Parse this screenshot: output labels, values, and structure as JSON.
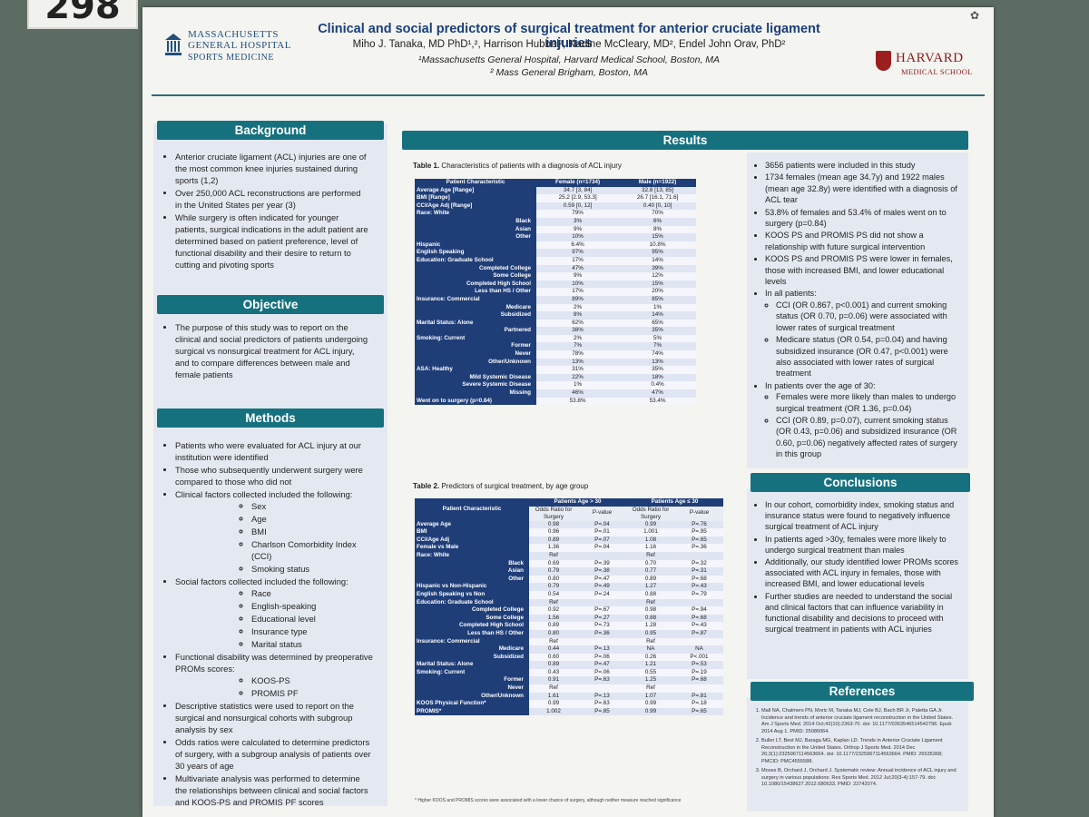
{
  "board_tag": "298",
  "header": {
    "title": "Clinical and social predictors of surgical treatment for anterior cruciate ligament injuries",
    "authors": "Miho J. Tanaka, MD PhD¹,², Harrison Hubbel², Nadine McCleary, MD², Endel John Orav, PhD²",
    "affiliation1": "¹Massachusetts General Hospital, Harvard Medical School, Boston, MA",
    "affiliation2": "² Mass General Brigham, Boston, MA",
    "logo_left_name": "MASSACHUSETTS GENERAL HOSPITAL",
    "logo_left_sub": "SPORTS MEDICINE",
    "logo_right_name": "HARVARD",
    "logo_right_sub": "MEDICAL SCHOOL"
  },
  "background": {
    "heading": "Background",
    "items": [
      "Anterior cruciate ligament (ACL) injuries are one of the most common knee injuries sustained during sports (1,2)",
      "Over 250,000 ACL reconstructions are performed in the United States per year (3)",
      "While surgery is often indicated for younger patients, surgical indications in the adult patient are determined based on patient preference, level of functional disability and their desire to return to cutting and pivoting sports"
    ]
  },
  "objective": {
    "heading": "Objective",
    "items": [
      "The purpose of this study was to report on the clinical and social predictors of patients undergoing surgical vs nonsurgical treatment for ACL injury, and to compare differences between male and female patients"
    ]
  },
  "methods": {
    "heading": "Methods",
    "item1": "Patients who were evaluated for ACL injury at our institution were identified",
    "item2": "Those who subsequently underwent surgery were compared to those who did not",
    "item3": "Clinical factors collected included the following:",
    "clinical": [
      "Sex",
      "Age",
      "BMI",
      "Charlson Comorbidity Index (CCI)",
      "Smoking status"
    ],
    "item4": "Social factors collected included the following:",
    "social": [
      "Race",
      "English-speaking",
      "Educational level",
      "Insurance type",
      "Marital status"
    ],
    "item5": "Functional disability was determined by preoperative PROMs scores:",
    "proms": [
      "KOOS-PS",
      "PROMIS PF"
    ],
    "item6": "Descriptive statistics were used to report on the surgical and nonsurgical cohorts with subgroup analysis by sex",
    "item7": "Odds ratios were calculated to determine predictors of surgery, with a subgroup analysis of patients over 30 years of age",
    "item8": "Multivariate analysis was performed to determine the relationships between clinical and social factors and KOOS-PS and PROMIS PF scores"
  },
  "results": {
    "heading": "Results",
    "table1": {
      "caption_bold": "Table 1.",
      "caption": " Characteristics of patients with a diagnosis of ACL injury",
      "headers": [
        "Patient Characteristic",
        "Female (n=1734)",
        "Male (n=1922)"
      ],
      "rows": [
        [
          "Average Age [Range]",
          "34.7 [3, 84]",
          "32.8 [13, 85]",
          false
        ],
        [
          "BMI [Range]",
          "25.2 [2.9, 53.3]",
          "26.7 [16.1, 71.6]",
          false
        ],
        [
          "CCI/Age Adj [Range]",
          "0.59 [0, 12]",
          "0.40 [0, 10]",
          false
        ],
        [
          "Race: White",
          "79%",
          "70%",
          false
        ],
        [
          "Black",
          "3%",
          "6%",
          true
        ],
        [
          "Asian",
          "9%",
          "8%",
          true
        ],
        [
          "Other",
          "10%",
          "15%",
          true
        ],
        [
          "Hispanic",
          "6.4%",
          "10.8%",
          false
        ],
        [
          "English Speaking",
          "97%",
          "95%",
          false
        ],
        [
          "Education: Graduate School",
          "17%",
          "14%",
          false
        ],
        [
          "Completed College",
          "47%",
          "39%",
          true
        ],
        [
          "Some College",
          "9%",
          "12%",
          true
        ],
        [
          "Completed High School",
          "10%",
          "15%",
          true
        ],
        [
          "Less than HS / Other",
          "17%",
          "20%",
          true
        ],
        [
          "Insurance: Commercial",
          "89%",
          "85%",
          false
        ],
        [
          "Medicare",
          "2%",
          "1%",
          true
        ],
        [
          "Subsidized",
          "8%",
          "14%",
          true
        ],
        [
          "Marital Status: Alone",
          "62%",
          "65%",
          false
        ],
        [
          "Partnered",
          "38%",
          "35%",
          true
        ],
        [
          "Smoking: Current",
          "2%",
          "5%",
          false
        ],
        [
          "Former",
          "7%",
          "7%",
          true
        ],
        [
          "Never",
          "78%",
          "74%",
          true
        ],
        [
          "Other/Unknown",
          "13%",
          "13%",
          true
        ],
        [
          "ASA: Healthy",
          "31%",
          "35%",
          false
        ],
        [
          "Mild Systemic Disease",
          "22%",
          "18%",
          true
        ],
        [
          "Severe Systemic Disease",
          "1%",
          "0.4%",
          true
        ],
        [
          "Missing",
          "46%",
          "47%",
          true
        ],
        [
          "Went on to surgery (p=0.84)",
          "53.8%",
          "53.4%",
          false
        ]
      ]
    },
    "table2": {
      "caption_bold": "Table 2.",
      "caption": " Predictors of surgical treatment, by age group",
      "group1": "Patients Age > 30",
      "group2": "Patients Age ≤ 30",
      "col_label": "Patient Characteristic",
      "or_label": "Odds Ratio for Surgery",
      "p_label": "P-value",
      "rows": [
        [
          "Average Age",
          "0.98",
          "P=.04",
          "0.99",
          "P=.76",
          false
        ],
        [
          "BMI",
          "0.96",
          "P=.01",
          "1.001",
          "P=.95",
          false
        ],
        [
          "CCI/Age Adj",
          "0.89",
          "P=.07",
          "1.08",
          "P=.65",
          false
        ],
        [
          "Female vs Male",
          "1.36",
          "P=.04",
          "1.16",
          "P=.36",
          false
        ],
        [
          "Race: White",
          "Ref",
          "",
          "Ref",
          "",
          false
        ],
        [
          "Black",
          "0.69",
          "P=.39",
          "0.70",
          "P=.32",
          true
        ],
        [
          "Asian",
          "0.79",
          "P=.38",
          "0.77",
          "P=.31",
          true
        ],
        [
          "Other",
          "0.80",
          "P=.47",
          "0.89",
          "P=.68",
          true
        ],
        [
          "Hispanic vs Non-Hispanic",
          "0.79",
          "P=.49",
          "1.27",
          "P=.43",
          false
        ],
        [
          "English Speaking vs Non",
          "0.54",
          "P=.24",
          "0.88",
          "P=.79",
          false
        ],
        [
          "Education: Graduate School",
          "Ref",
          "",
          "Ref",
          "",
          false
        ],
        [
          "Completed College",
          "0.92",
          "P=.67",
          "0.98",
          "P=.94",
          true
        ],
        [
          "Some College",
          "1.56",
          "P=.27",
          "0.88",
          "P=.68",
          true
        ],
        [
          "Completed High School",
          "0.89",
          "P=.73",
          "1.28",
          "P=.43",
          true
        ],
        [
          "Less than HS / Other",
          "0.80",
          "P=.36",
          "0.95",
          "P=.87",
          true
        ],
        [
          "Insurance: Commercial",
          "Ref",
          "",
          "Ref",
          "",
          false
        ],
        [
          "Medicare",
          "0.44",
          "P=.13",
          "NA",
          "NA",
          true
        ],
        [
          "Subsidized",
          "0.60",
          "P=.06",
          "0.26",
          "P<.001",
          true
        ],
        [
          "Marital Status: Alone",
          "0.89",
          "P=.47",
          "1.21",
          "P=.53",
          false
        ],
        [
          "Smoking: Current",
          "0.43",
          "P=.06",
          "0.55",
          "P=.19",
          false
        ],
        [
          "Former",
          "0.91",
          "P=.63",
          "1.25",
          "P=.68",
          true
        ],
        [
          "Never",
          "Ref",
          "",
          "Ref",
          "",
          true
        ],
        [
          "Other/Unknown",
          "1.61",
          "P=.13",
          "1.07",
          "P=.81",
          true
        ],
        [
          "KOOS Physical Function*",
          "0.99",
          "P=.63",
          "0.99",
          "P=.18",
          false
        ],
        [
          "PROMIS*",
          "1.002",
          "P=.85",
          "0.99",
          "P=.65",
          false
        ]
      ],
      "footnote": "* Higher KOOS and PROMIS scores were associated with a lower chance of surgery, although neither measure reached significance"
    },
    "findings": [
      "3656 patients were included in this study",
      "1734 females (mean age 34.7y) and 1922 males (mean age 32.8y) were identified with a diagnosis of ACL tear",
      "53.8% of females and 53.4% of males went on to surgery (p=0.84)",
      "KOOS PS and PROMIS PS did not show a relationship with future surgical intervention",
      "KOOS PS and PROMIS PS were lower in females, those with increased BMI, and lower educational levels"
    ],
    "all_patients_label": "In all patients:",
    "all_patients": [
      "CCI (OR 0.867, p<0.001) and current smoking status (OR 0.70, p=0.06) were associated with lower rates of surgical treatment",
      "Medicare status (OR 0.54, p=0.04) and having subsidized insurance (OR 0.47, p<0.001) were also associated with lower rates of surgical treatment"
    ],
    "over30_label": "In patients over the age of 30:",
    "over30": [
      "Females were more likely than males to undergo surgical treatment (OR 1.36, p=0.04)",
      "CCI (OR 0.89, p=0.07), current smoking status (OR 0.43, p=0.06) and subsidized insurance (OR 0.60, p=0.06) negatively affected rates of surgery in this group"
    ]
  },
  "conclusions": {
    "heading": "Conclusions",
    "items": [
      "In our cohort, comorbidity index, smoking status and insurance status were found to negatively influence surgical treatment of ACL injury",
      "In patients aged >30y, females were more likely to undergo surgical treatment than males",
      "Additionally, our study identified lower PROMs scores associated with ACL injury in females, those with increased BMI, and lower educational levels",
      "Further studies are needed to understand the social and clinical factors that can influence variability in functional disability and decisions to proceed with surgical treatment in patients with ACL injuries"
    ]
  },
  "references": {
    "heading": "References",
    "items": [
      "Mall NA, Chalmers PN, Moric M, Tanaka MJ, Cole BJ, Bach BR Jr, Paletta GA Jr. Incidence and trends of anterior cruciate ligament reconstruction in the United States. Am J Sports Med. 2014 Oct;42(10):2363-70. doi: 10.1177/0363546514542796. Epub 2014 Aug 1. PMID: 25086064.",
      "Buller LT, Best MJ, Baraga MG, Kaplan LD. Trends in Anterior Cruciate Ligament Reconstruction in the United States. Orthop J Sports Med. 2014 Dec 26;3(1):2325967114563664. doi: 10.1177/2325967114563664. PMID: 26535368; PMCID: PMC4555588.",
      "Moses B, Orchard J, Orchard J. Systematic review: Annual incidence of ACL injury and surgery in various populations. Res Sports Med. 2012 Jul;20(3-4):157-79. doi: 10.1080/15438627.2012.680633. PMID: 22742074."
    ]
  }
}
